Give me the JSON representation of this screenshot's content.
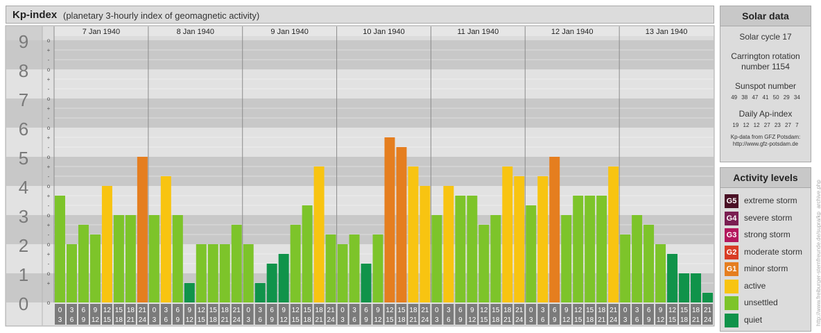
{
  "title": "Kp-index",
  "subtitle": "(planetary 3-hourly index of geomagnetic activity)",
  "colors": {
    "quiet": "#10934a",
    "unsettled": "#7dc42a",
    "active": "#f8c411",
    "minor_storm": "#e57e1f",
    "moderate_storm": "#d83c25",
    "strong_storm": "#b3175d",
    "severe_storm": "#7a1e52",
    "extreme_storm": "#4a1025"
  },
  "chart_data": {
    "type": "bar",
    "title": "Kp-index",
    "subtitle": "(planetary 3-hourly index of geomagnetic activity)",
    "ylim": [
      0,
      9
    ],
    "y_ticks": [
      "0",
      "1",
      "2",
      "3",
      "4",
      "5",
      "6",
      "7",
      "8",
      "9"
    ],
    "y_sub_labels": [
      "o",
      "+",
      "-",
      "o"
    ],
    "days": [
      "7 Jan 1940",
      "8 Jan 1940",
      "9 Jan 1940",
      "10 Jan 1940",
      "11 Jan 1940",
      "12 Jan 1940",
      "13 Jan 1940"
    ],
    "interval_starts": [
      "0",
      "3",
      "6",
      "9",
      "12",
      "15",
      "18",
      "21"
    ],
    "interval_ends": [
      "3",
      "6",
      "9",
      "12",
      "15",
      "18",
      "21",
      "24"
    ],
    "values": [
      [
        3.667,
        2.0,
        2.667,
        2.333,
        4.0,
        3.0,
        3.0,
        5.0
      ],
      [
        3.0,
        4.333,
        3.0,
        0.667,
        2.0,
        2.0,
        2.0,
        2.667
      ],
      [
        2.0,
        0.667,
        1.333,
        1.667,
        2.667,
        3.333,
        4.667,
        2.333
      ],
      [
        2.0,
        2.333,
        1.333,
        2.333,
        5.667,
        5.333,
        4.667,
        4.0
      ],
      [
        3.0,
        4.0,
        3.667,
        3.667,
        2.667,
        3.0,
        4.667,
        4.333
      ],
      [
        3.333,
        4.333,
        5.0,
        3.0,
        3.667,
        3.667,
        3.667,
        4.667
      ],
      [
        2.333,
        3.0,
        2.667,
        2.0,
        1.667,
        1.0,
        1.0,
        0.333
      ]
    ],
    "grid": true
  },
  "solar": {
    "title": "Solar data",
    "cycle": "Solar cycle 17",
    "carrington_line1": "Carrington rotation",
    "carrington_line2": "number 1154",
    "sunspot_label": "Sunspot number",
    "sunspot_values": "49 38 47 41 50 29 34",
    "ap_label": "Daily Ap-index",
    "ap_values": "19 12 12 27 23 27 7",
    "source_line1": "Kp-data from GFZ Potsdam:",
    "source_line2": "http://www.gfz-potsdam.de"
  },
  "levels": {
    "title": "Activity levels",
    "items": [
      {
        "code": "G5",
        "label": "extreme storm",
        "color": "#4a1025"
      },
      {
        "code": "G4",
        "label": "severe storm",
        "color": "#7a1e52"
      },
      {
        "code": "G3",
        "label": "strong storm",
        "color": "#b3175d"
      },
      {
        "code": "G2",
        "label": "moderate storm",
        "color": "#d83c25"
      },
      {
        "code": "G1",
        "label": "minor storm",
        "color": "#e57e1f"
      },
      {
        "code": "",
        "label": "active",
        "color": "#f8c411"
      },
      {
        "code": "",
        "label": "unsettled",
        "color": "#7dc42a"
      },
      {
        "code": "",
        "label": "quiet",
        "color": "#10934a"
      }
    ]
  },
  "watermark": "http://www.freiburger-sternfreunde.de/supra/kp_archive.php"
}
